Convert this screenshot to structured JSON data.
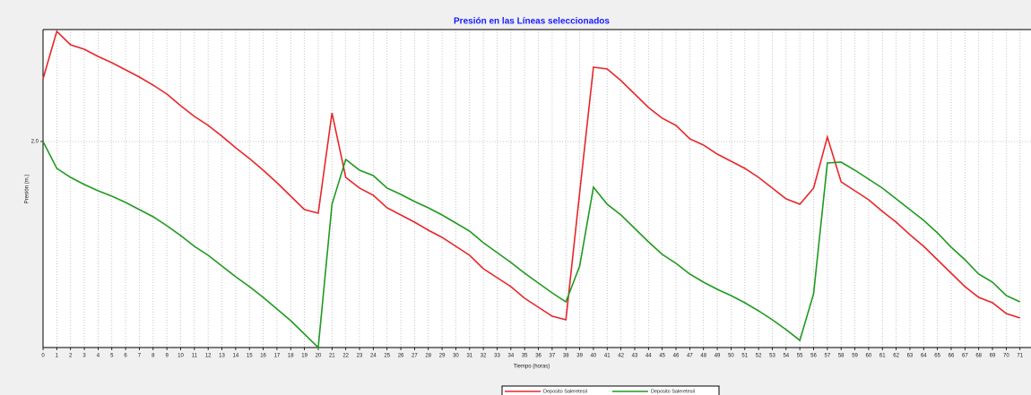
{
  "chart_data": {
    "type": "line",
    "title": "Presión en las Líneas seleccionados",
    "xlabel": "Tiempo (horas)",
    "ylabel": "Presión (m.)",
    "x": [
      0,
      1,
      2,
      3,
      4,
      5,
      6,
      7,
      8,
      9,
      10,
      11,
      12,
      13,
      14,
      15,
      16,
      17,
      18,
      19,
      20,
      21,
      22,
      23,
      24,
      25,
      26,
      27,
      28,
      29,
      30,
      31,
      32,
      33,
      34,
      35,
      36,
      37,
      38,
      39,
      40,
      41,
      42,
      43,
      44,
      45,
      46,
      47,
      48,
      49,
      50,
      51,
      52,
      53,
      54,
      55,
      56,
      57,
      58,
      59,
      60,
      61,
      62,
      63,
      64,
      65,
      66,
      67,
      68,
      69,
      70,
      71
    ],
    "series": [
      {
        "name": "Deposito Saleretesil",
        "color": "#e8262a",
        "values": [
          2.35,
          2.615,
          2.54,
          2.515,
          2.475,
          2.44,
          2.4,
          2.36,
          2.315,
          2.265,
          2.2,
          2.14,
          2.09,
          2.03,
          1.965,
          1.905,
          1.84,
          1.77,
          1.695,
          1.62,
          1.6,
          2.16,
          1.8,
          1.74,
          1.7,
          1.63,
          1.59,
          1.55,
          1.505,
          1.465,
          1.415,
          1.365,
          1.29,
          1.24,
          1.19,
          1.125,
          1.075,
          1.025,
          1.005,
          1.715,
          2.415,
          2.405,
          2.34,
          2.265,
          2.19,
          2.13,
          2.09,
          2.015,
          1.98,
          1.93,
          1.89,
          1.85,
          1.8,
          1.74,
          1.68,
          1.65,
          1.74,
          2.025,
          1.775,
          1.725,
          1.675,
          1.61,
          1.55,
          1.48,
          1.415,
          1.34,
          1.265,
          1.19,
          1.13,
          1.1,
          1.04,
          1.015
        ]
      },
      {
        "name": "Deposito Saleretesil",
        "color": "#1f9a1f",
        "values": [
          2,
          1.85,
          1.8,
          1.76,
          1.725,
          1.695,
          1.66,
          1.62,
          1.58,
          1.53,
          1.475,
          1.415,
          1.365,
          1.305,
          1.245,
          1.19,
          1.13,
          1.065,
          1,
          0.925,
          0.85,
          1.65,
          1.9,
          1.84,
          1.81,
          1.74,
          1.705,
          1.665,
          1.63,
          1.59,
          1.545,
          1.5,
          1.435,
          1.38,
          1.325,
          1.265,
          1.21,
          1.155,
          1.105,
          1.305,
          1.745,
          1.65,
          1.59,
          1.515,
          1.44,
          1.37,
          1.32,
          1.26,
          1.215,
          1.175,
          1.14,
          1.1,
          1.055,
          1.005,
          0.95,
          0.89,
          1.15,
          1.88,
          1.885,
          1.84,
          1.79,
          1.74,
          1.68,
          1.62,
          1.56,
          1.49,
          1.41,
          1.34,
          1.26,
          1.215,
          1.14,
          1.105
        ]
      }
    ],
    "xlim": [
      0,
      71.8
    ],
    "xticks": [
      0,
      1,
      2,
      3,
      4,
      5,
      6,
      7,
      8,
      9,
      10,
      11,
      12,
      13,
      14,
      15,
      16,
      17,
      18,
      19,
      20,
      21,
      22,
      23,
      24,
      25,
      26,
      27,
      28,
      29,
      30,
      31,
      32,
      33,
      34,
      35,
      36,
      37,
      38,
      39,
      40,
      41,
      42,
      43,
      44,
      45,
      46,
      47,
      48,
      49,
      50,
      51,
      52,
      53,
      54,
      55,
      56,
      57,
      58,
      59,
      60,
      61,
      62,
      63,
      64,
      65,
      66,
      67,
      68,
      69,
      70,
      71
    ],
    "ylim": [
      0.85,
      2.625
    ],
    "yticks": [
      {
        "value": 2,
        "label": "2.0"
      }
    ],
    "grid": true
  }
}
